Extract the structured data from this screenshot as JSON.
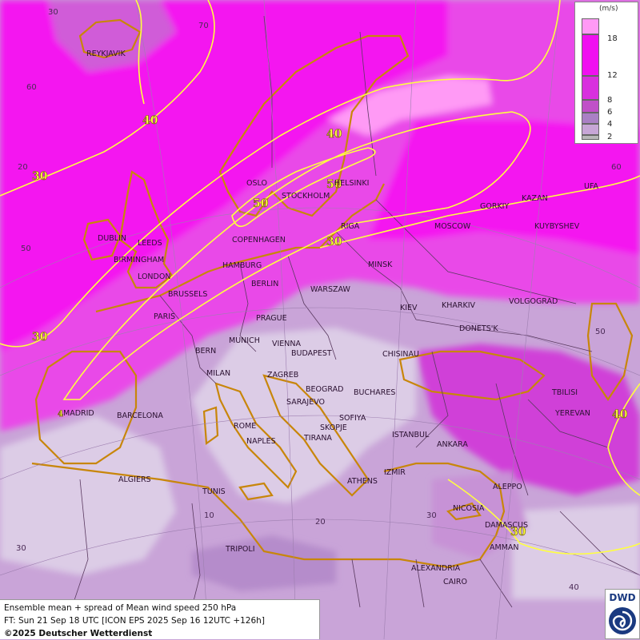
{
  "legend": {
    "unit": "(m/s)",
    "ticks": [
      "18",
      "12",
      "8",
      "6",
      "4",
      "2"
    ],
    "colors": [
      "#ff9af5",
      "#f010f0",
      "#d830de",
      "#c050c8",
      "#aa80c5",
      "#c7a6d6",
      "#dccce6",
      "#b8b8b8"
    ]
  },
  "caption": {
    "line1": "Ensemble mean + spread of Mean wind speed 250 hPa",
    "line2": "FT: Sun 21 Sep 18 UTC [ICON EPS 2025 Sep 16 12UTC +126h]",
    "line3": "©2025 Deutscher Wetterdienst"
  },
  "logo": {
    "text": "DWD",
    "icon": "dwd-spiral-icon"
  },
  "isotach_labels": [
    "40",
    "30",
    "40",
    "50",
    "50",
    "30",
    "30",
    "40",
    "30",
    "4"
  ],
  "grid_labels": [
    "30",
    "70",
    "60",
    "20",
    "50",
    "60",
    "50",
    "10",
    "20",
    "30",
    "40",
    "30"
  ],
  "cities": [
    "REYKJAVIK",
    "OSLO",
    "HELSINKI",
    "STOCKHOLM",
    "KAZAN",
    "UFA",
    "GORKIY",
    "DUBLIN",
    "LEEDS",
    "RIGA",
    "MOSCOW",
    "KUYBYSHEV",
    "COPENHAGEN",
    "BIRMINGHAM",
    "LONDON",
    "HAMBURG",
    "BERLIN",
    "MINSK",
    "BRUSSELS",
    "WARSZAW",
    "KIEV",
    "KHARKIV",
    "VOLGOGRAD",
    "PARIS",
    "PRAGUE",
    "DONETS'K",
    "MUNICH",
    "VIENNA",
    "BERN",
    "BUDAPEST",
    "CHISINAU",
    "MILAN",
    "ZAGREB",
    "BEOGRAD",
    "BUCHARES",
    "TBILISI",
    "SARAJEVO",
    "MADRID",
    "BARCELONA",
    "SOFIYA",
    "YEREVAN",
    "ROME",
    "SKOPJE",
    "NAPLES",
    "TIRANA",
    "ISTANBUL",
    "ANKARA",
    "ALGIERS",
    "ATHENS",
    "IZMIR",
    "TUNIS",
    "ALEPPO",
    "NICOSIA",
    "DAMASCUS",
    "TRIPOLI",
    "AMMAN",
    "ALEXANDRIA",
    "CAIRO"
  ]
}
